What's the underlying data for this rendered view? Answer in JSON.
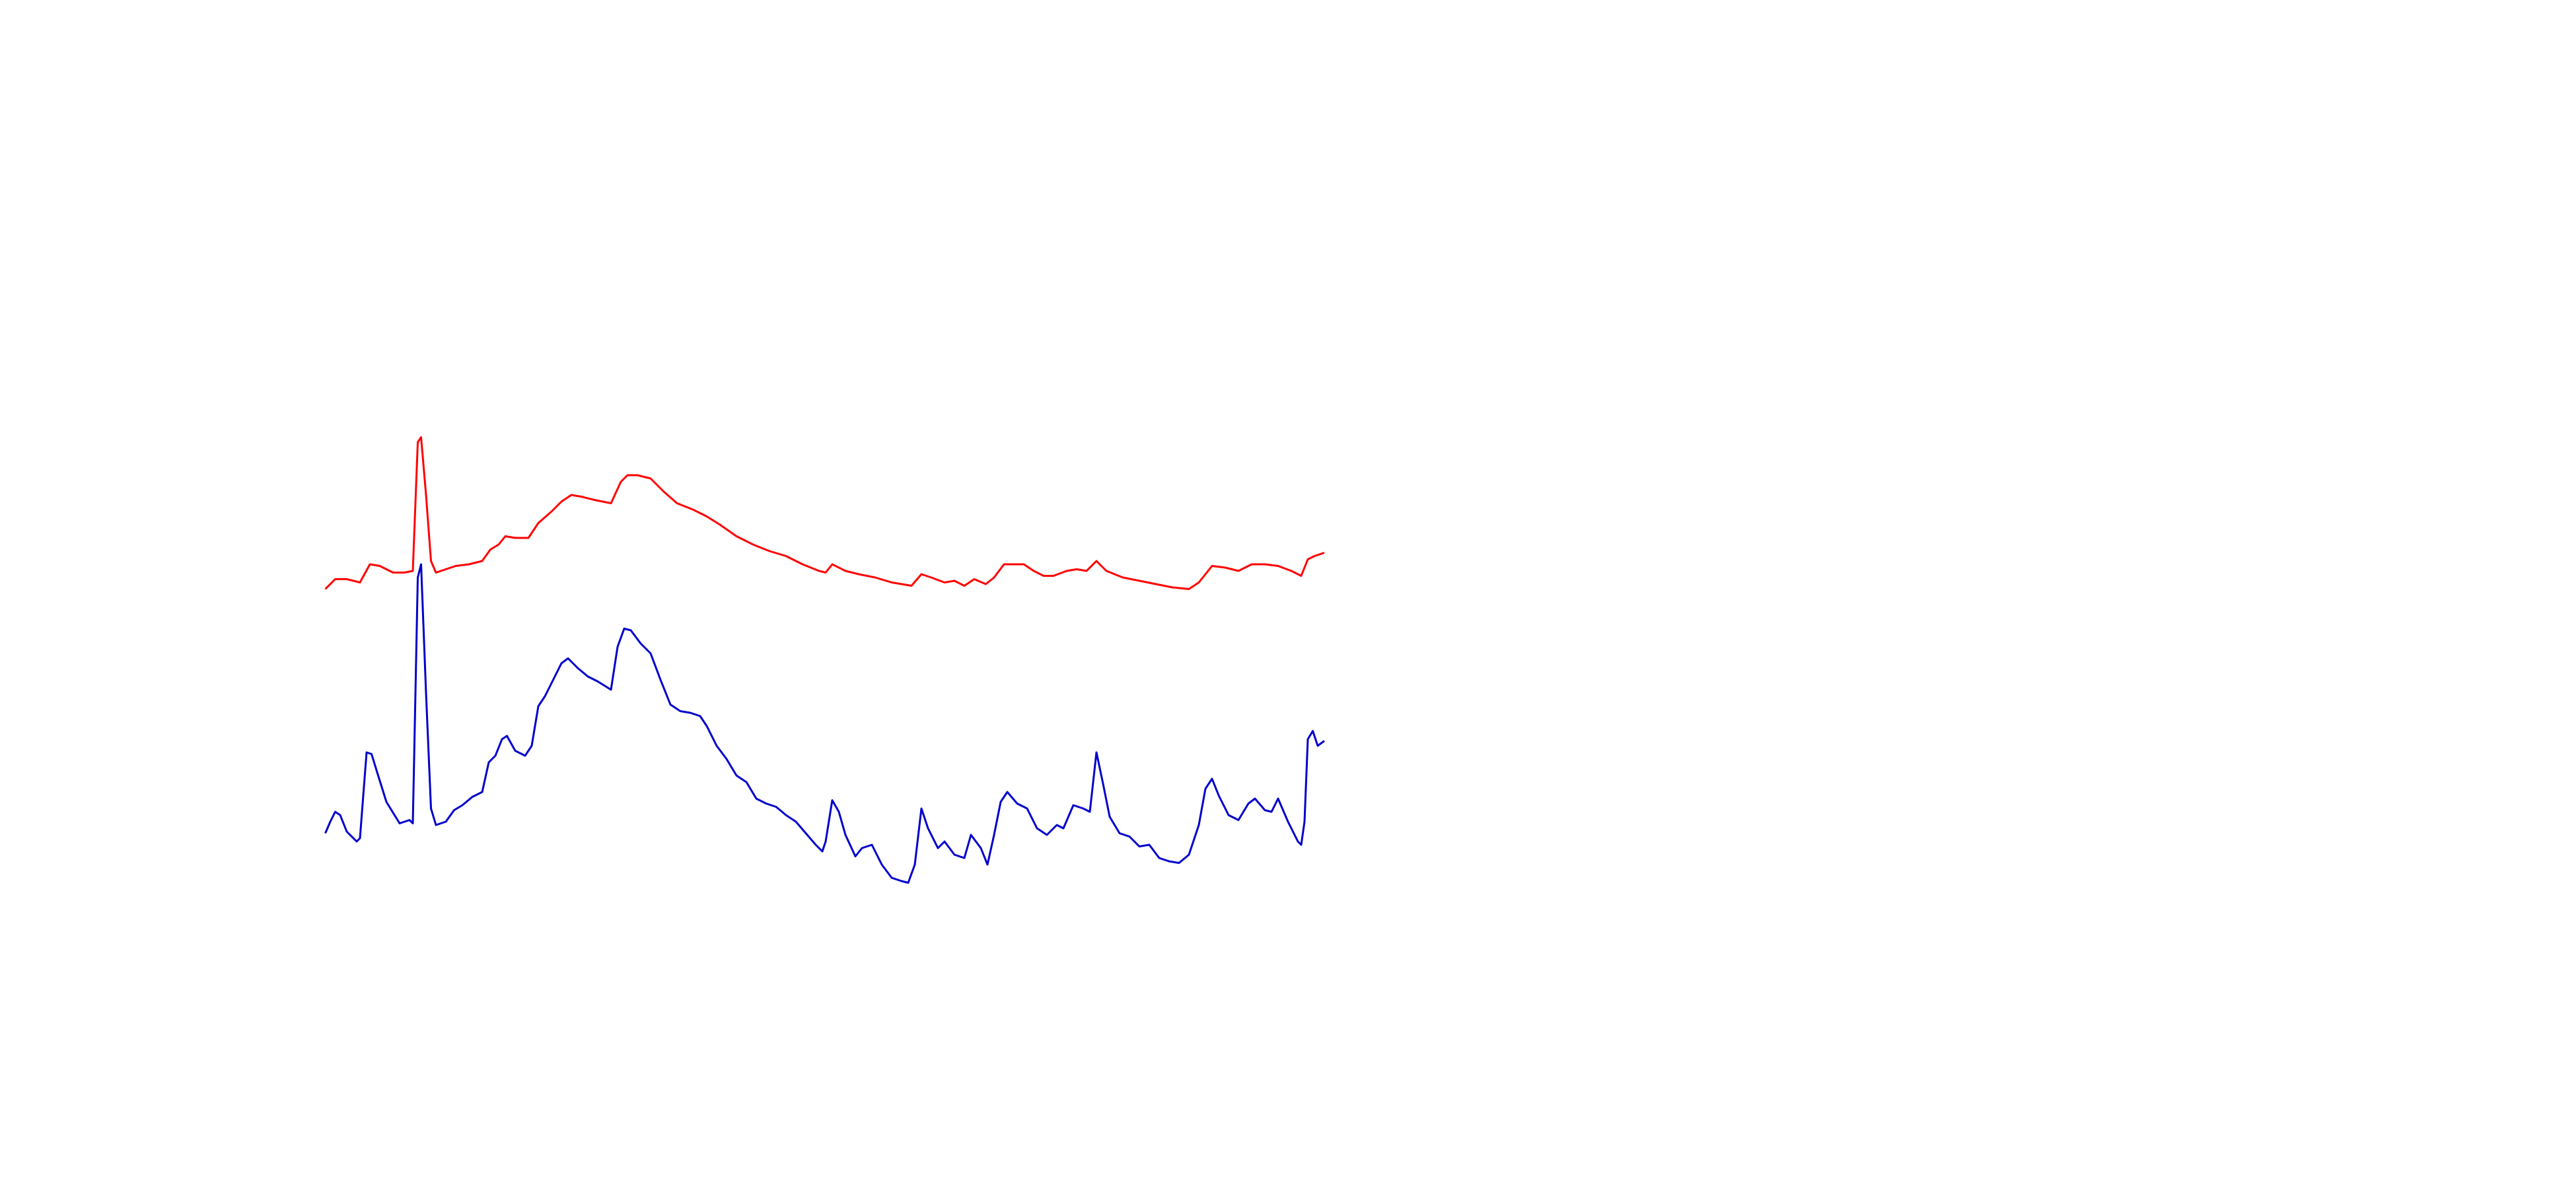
{
  "chart_data": {
    "type": "line",
    "xlim": [
      0,
      1560
    ],
    "ylim": [
      0,
      720
    ],
    "series": [
      {
        "color": "#ff0000",
        "x": [
          197,
          203,
          210,
          218,
          224,
          230,
          238,
          245,
          250,
          253,
          255,
          258,
          261,
          264,
          270,
          276,
          284,
          292,
          297,
          302,
          306,
          312,
          320,
          326,
          334,
          340,
          346,
          352,
          360,
          370,
          376,
          380,
          386,
          394,
          402,
          410,
          420,
          428,
          436,
          446,
          456,
          466,
          476,
          486,
          496,
          500,
          504,
          512,
          520,
          530,
          540,
          552,
          558,
          564,
          572,
          578,
          584,
          590,
          597,
          602,
          608,
          614,
          620,
          626,
          632,
          638,
          646,
          652,
          658,
          664,
          670,
          680,
          690,
          700,
          710,
          720,
          726,
          734,
          742,
          750,
          758,
          766,
          774,
          782,
          788,
          792,
          796,
          802
        ],
        "values": [
          363,
          369,
          369,
          367,
          378,
          377,
          373,
          373,
          374,
          452,
          455,
          420,
          380,
          373,
          375,
          377,
          378,
          380,
          387,
          390,
          395,
          394,
          394,
          403,
          410,
          416,
          420,
          419,
          417,
          415,
          428,
          432,
          432,
          430,
          422,
          415,
          411,
          407,
          402,
          395,
          390,
          386,
          383,
          378,
          374,
          373,
          378,
          374,
          372,
          370,
          367,
          365,
          372,
          370,
          367,
          368,
          365,
          369,
          366,
          370,
          378,
          378,
          378,
          374,
          371,
          371,
          374,
          375,
          374,
          380,
          374,
          370,
          368,
          366,
          364,
          363,
          367,
          377,
          376,
          374,
          378,
          378,
          377,
          374,
          371,
          381,
          383,
          385
        ]
      },
      {
        "color": "#0000cc",
        "x": [
          197,
          200,
          203,
          206,
          210,
          216,
          218,
          222,
          225,
          229,
          234,
          242,
          248,
          250,
          253,
          255,
          258,
          261,
          264,
          270,
          275,
          280,
          286,
          292,
          296,
          300,
          304,
          307,
          312,
          318,
          322,
          326,
          330,
          336,
          340,
          344,
          350,
          356,
          362,
          370,
          374,
          378,
          382,
          388,
          394,
          400,
          406,
          412,
          418,
          424,
          428,
          434,
          440,
          446,
          452,
          458,
          464,
          470,
          476,
          482,
          488,
          494,
          498,
          500,
          504,
          508,
          512,
          518,
          522,
          528,
          534,
          540,
          546,
          550,
          554,
          558,
          562,
          568,
          572,
          578,
          584,
          588,
          594,
          598,
          602,
          606,
          610,
          616,
          622,
          628,
          634,
          640,
          644,
          650,
          656,
          660,
          664,
          668,
          672,
          678,
          684,
          690,
          696,
          702,
          708,
          714,
          720,
          726,
          730,
          734,
          738,
          744,
          750,
          756,
          760,
          766,
          770,
          774,
          780,
          786,
          788,
          790,
          792,
          795,
          798,
          802
        ],
        "values": [
          215,
          222,
          228,
          226,
          216,
          210,
          212,
          264,
          263,
          250,
          234,
          221,
          223,
          221,
          370,
          378,
          300,
          230,
          220,
          222,
          229,
          232,
          237,
          240,
          258,
          262,
          272,
          274,
          265,
          262,
          268,
          292,
          298,
          310,
          318,
          321,
          315,
          310,
          307,
          302,
          328,
          339,
          338,
          330,
          324,
          308,
          293,
          289,
          288,
          286,
          280,
          268,
          260,
          250,
          246,
          236,
          233,
          231,
          226,
          222,
          215,
          208,
          204,
          210,
          235,
          228,
          214,
          201,
          206,
          208,
          196,
          188,
          186,
          185,
          196,
          230,
          218,
          206,
          210,
          202,
          200,
          214,
          206,
          196,
          214,
          234,
          240,
          233,
          230,
          218,
          214,
          220,
          218,
          232,
          230,
          228,
          264,
          245,
          225,
          215,
          213,
          207,
          208,
          200,
          198,
          197,
          202,
          220,
          242,
          248,
          238,
          226,
          223,
          233,
          236,
          229,
          228,
          236,
          222,
          210,
          208,
          222,
          272,
          277,
          268,
          271
        ]
      }
    ]
  }
}
